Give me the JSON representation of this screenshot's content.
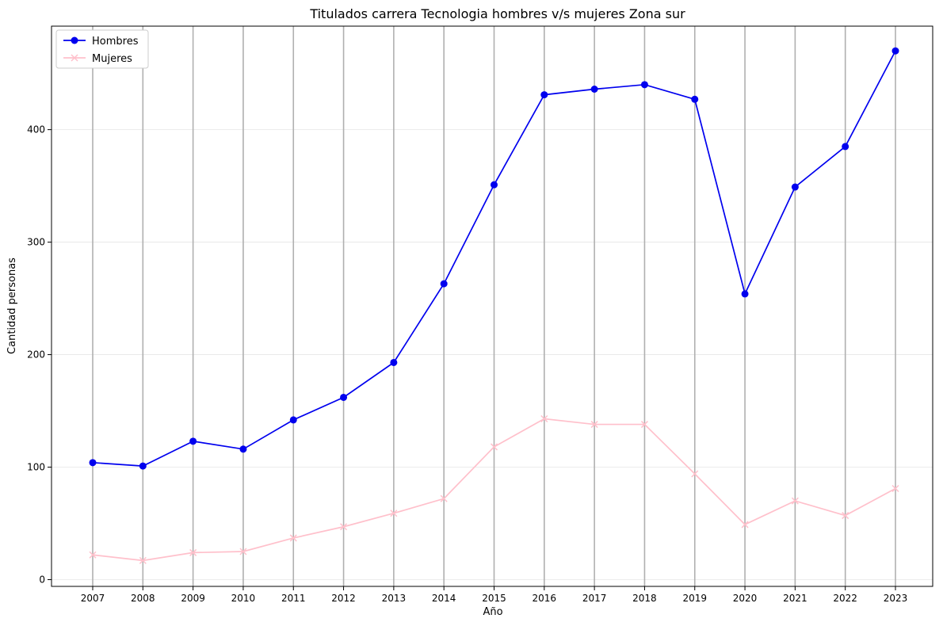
{
  "chart_data": {
    "type": "line",
    "title": "Titulados carrera Tecnologia hombres v/s mujeres Zona sur",
    "xlabel": "Año",
    "ylabel": "Cantidad personas",
    "x": [
      "2007",
      "2008",
      "2009",
      "2010",
      "2011",
      "2012",
      "2013",
      "2014",
      "2015",
      "2016",
      "2017",
      "2018",
      "2019",
      "2020",
      "2021",
      "2022",
      "2023"
    ],
    "ylim": [
      -6,
      492
    ],
    "yticks": [
      0,
      100,
      200,
      300,
      400
    ],
    "grid": {
      "x": "major, gray",
      "y": "light"
    },
    "legend": "top-left",
    "series": [
      {
        "name": "Hombres",
        "color": "#0000ee",
        "marker": "circle",
        "values": [
          104,
          101,
          123,
          116,
          142,
          162,
          193,
          263,
          351,
          431,
          436,
          440,
          427,
          254,
          349,
          385,
          470
        ]
      },
      {
        "name": "Mujeres",
        "color": "#ffc0cb",
        "marker": "x",
        "values": [
          22,
          17,
          24,
          25,
          37,
          47,
          59,
          72,
          118,
          143,
          138,
          138,
          94,
          49,
          70,
          57,
          81
        ]
      }
    ]
  }
}
